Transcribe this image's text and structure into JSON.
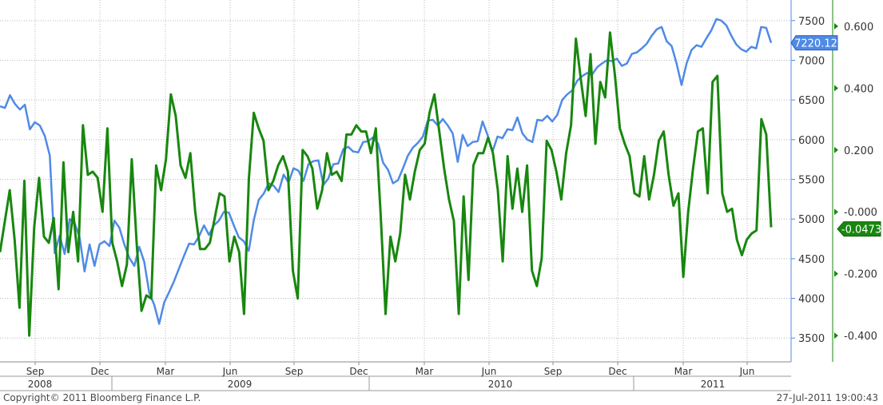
{
  "footer": {
    "copyright": "Copyright© 2011 Bloomberg Finance L.P.",
    "timestamp": "27-Jul-2011 19:00:43"
  },
  "chart_data": {
    "type": "line",
    "x_axis": {
      "months": [
        "Sep",
        "Dec",
        "Mar",
        "Jun",
        "Sep",
        "Dec",
        "Mar",
        "Jun",
        "Sep",
        "Dec",
        "Mar",
        "Jun"
      ],
      "years": [
        "2008",
        "2009",
        "2010",
        "2011"
      ]
    },
    "left_axis": {
      "ticks": [
        3500,
        4000,
        4500,
        5000,
        5500,
        6000,
        6500,
        7000,
        7500
      ],
      "ylim": [
        3200,
        7760
      ]
    },
    "right_axis": {
      "ticks": [
        "0.600",
        "0.400",
        "0.200",
        "-0.000",
        "-0.200",
        "-0.400"
      ],
      "ylim": [
        -0.485,
        0.685
      ]
    },
    "grid": true,
    "colors": {
      "blue": "#4f8ae6",
      "green": "#18870f",
      "grid": "#b9b9b9",
      "axis": "#333333"
    },
    "series": [
      {
        "axis": "left",
        "color": "#4f8ae6",
        "last_value_label": "7220.12",
        "values": [
          6420,
          6400,
          6560,
          6450,
          6380,
          6440,
          6130,
          6220,
          6180,
          6050,
          5800,
          4570,
          4790,
          4560,
          5000,
          4950,
          4770,
          4340,
          4680,
          4410,
          4680,
          4720,
          4660,
          4980,
          4890,
          4680,
          4510,
          4410,
          4650,
          4460,
          4070,
          3920,
          3680,
          3950,
          4080,
          4220,
          4380,
          4540,
          4690,
          4680,
          4780,
          4920,
          4800,
          4920,
          4980,
          5090,
          5080,
          4920,
          4770,
          4720,
          4600,
          4980,
          5240,
          5320,
          5450,
          5420,
          5340,
          5560,
          5460,
          5640,
          5610,
          5480,
          5690,
          5730,
          5740,
          5430,
          5510,
          5690,
          5700,
          5880,
          5910,
          5850,
          5840,
          5970,
          5980,
          6030,
          5950,
          5710,
          5620,
          5450,
          5490,
          5640,
          5800,
          5900,
          5960,
          6040,
          6240,
          6250,
          6180,
          6260,
          6180,
          6080,
          5720,
          6060,
          5920,
          5970,
          5980,
          6230,
          6060,
          5850,
          6040,
          6020,
          6130,
          6120,
          6280,
          6080,
          6000,
          5970,
          6250,
          6240,
          6300,
          6230,
          6310,
          6500,
          6570,
          6620,
          6740,
          6800,
          6840,
          6820,
          6910,
          6960,
          7000,
          6990,
          7020,
          6930,
          6960,
          7080,
          7100,
          7150,
          7210,
          7310,
          7390,
          7420,
          7240,
          7180,
          6960,
          6690,
          6960,
          7130,
          7190,
          7170,
          7280,
          7380,
          7520,
          7500,
          7440,
          7310,
          7200,
          7140,
          7110,
          7170,
          7150,
          7420,
          7410,
          7220
        ]
      },
      {
        "axis": "right",
        "color": "#18870f",
        "last_value_label": "-0.0473",
        "values": [
          -0.13,
          -0.03,
          0.07,
          -0.09,
          -0.31,
          0.1,
          -0.4,
          -0.05,
          0.11,
          -0.08,
          -0.1,
          -0.02,
          -0.25,
          0.16,
          -0.13,
          0.0,
          -0.16,
          0.28,
          0.12,
          0.13,
          0.11,
          0.0,
          0.27,
          -0.1,
          -0.16,
          -0.24,
          -0.17,
          0.17,
          -0.1,
          -0.32,
          -0.27,
          -0.28,
          0.15,
          0.07,
          0.17,
          0.38,
          0.31,
          0.15,
          0.11,
          0.19,
          0.0,
          -0.12,
          -0.12,
          -0.1,
          -0.02,
          0.06,
          0.05,
          -0.16,
          -0.08,
          -0.13,
          -0.33,
          0.11,
          0.32,
          0.27,
          0.23,
          0.07,
          0.1,
          0.15,
          0.18,
          0.13,
          -0.19,
          -0.28,
          0.2,
          0.18,
          0.14,
          0.01,
          0.07,
          0.19,
          0.12,
          0.13,
          0.1,
          0.25,
          0.25,
          0.28,
          0.26,
          0.26,
          0.19,
          0.27,
          -0.01,
          -0.33,
          -0.08,
          -0.16,
          -0.07,
          0.12,
          0.04,
          0.13,
          0.2,
          0.22,
          0.32,
          0.38,
          0.26,
          0.14,
          0.04,
          -0.03,
          -0.33,
          0.05,
          -0.22,
          0.15,
          0.19,
          0.19,
          0.24,
          0.19,
          0.07,
          -0.16,
          0.18,
          0.01,
          0.14,
          0.0,
          0.15,
          -0.19,
          -0.24,
          -0.15,
          0.23,
          0.2,
          0.13,
          0.04,
          0.19,
          0.28,
          0.56,
          0.43,
          0.31,
          0.51,
          0.22,
          0.42,
          0.37,
          0.58,
          0.44,
          0.27,
          0.22,
          0.18,
          0.06,
          0.05,
          0.18,
          0.04,
          0.12,
          0.23,
          0.26,
          0.12,
          0.02,
          0.06,
          -0.21,
          0.0,
          0.14,
          0.26,
          0.27,
          0.06,
          0.42,
          0.44,
          0.06,
          0.0,
          0.01,
          -0.09,
          -0.14,
          -0.09,
          -0.07,
          -0.06,
          0.3,
          0.25,
          -0.05
        ]
      }
    ]
  }
}
